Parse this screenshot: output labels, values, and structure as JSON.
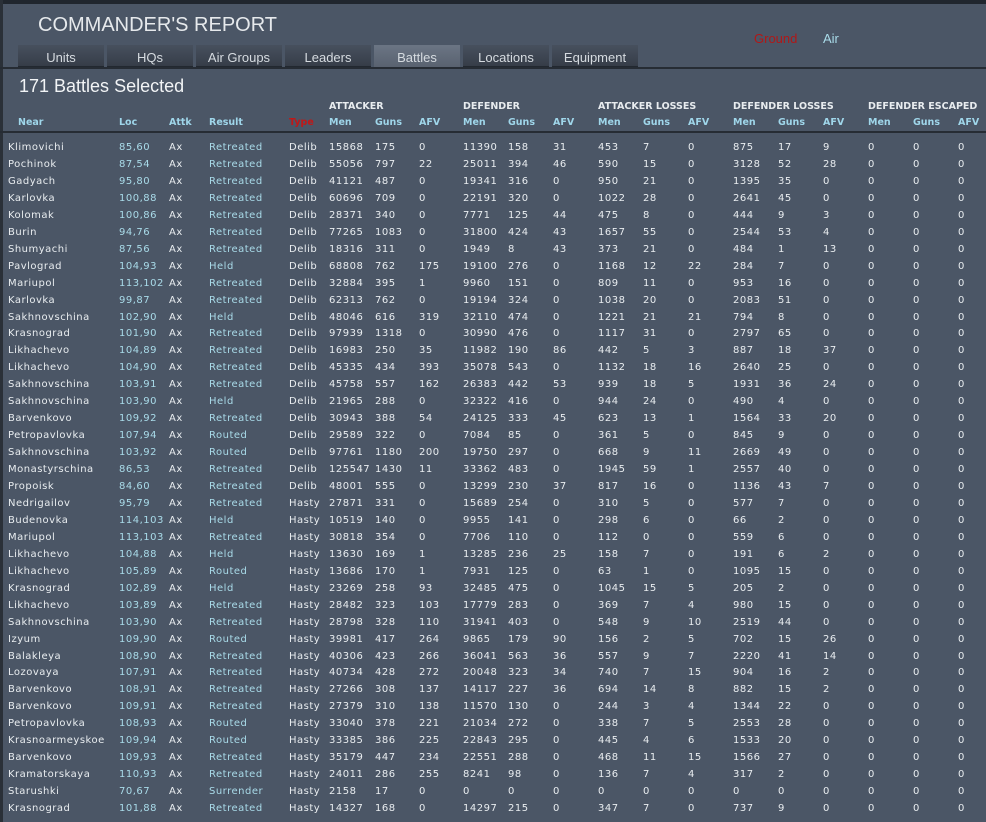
{
  "header": {
    "title": "COMMANDER'S REPORT",
    "mode_ground": "Ground",
    "mode_air": "Air",
    "ground_color": "#b01818",
    "air_color": "#a9dbe9"
  },
  "tabs": [
    {
      "label": "Units",
      "active": false
    },
    {
      "label": "HQs",
      "active": false
    },
    {
      "label": "Air Groups",
      "active": false
    },
    {
      "label": "Leaders",
      "active": false
    },
    {
      "label": "Battles",
      "active": true
    },
    {
      "label": "Locations",
      "active": false
    },
    {
      "label": "Equipment",
      "active": false
    }
  ],
  "summary": "171 Battles Selected",
  "groups": [
    "ATTACKER",
    "DEFENDER",
    "ATTACKER LOSSES",
    "DEFENDER LOSSES",
    "DEFENDER ESCAPED"
  ],
  "columns": [
    "Near",
    "Loc",
    "Attk",
    "Result",
    "Type",
    "Men",
    "Guns",
    "AFV",
    "Men",
    "Guns",
    "AFV",
    "Men",
    "Guns",
    "AFV",
    "Men",
    "Guns",
    "AFV",
    "Men",
    "Guns",
    "AFV"
  ],
  "sorted_column_color": "#c01818",
  "rows": [
    [
      "Klimovichi",
      "85,60",
      "Ax",
      "Retreated",
      "Delib",
      "15868",
      "175",
      "0",
      "11390",
      "158",
      "31",
      "453",
      "7",
      "0",
      "875",
      "17",
      "9",
      "0",
      "0",
      "0"
    ],
    [
      "Pochinok",
      "87,54",
      "Ax",
      "Retreated",
      "Delib",
      "55056",
      "797",
      "22",
      "25011",
      "394",
      "46",
      "590",
      "15",
      "0",
      "3128",
      "52",
      "28",
      "0",
      "0",
      "0"
    ],
    [
      "Gadyach",
      "95,80",
      "Ax",
      "Retreated",
      "Delib",
      "41121",
      "487",
      "0",
      "19341",
      "316",
      "0",
      "950",
      "21",
      "0",
      "1395",
      "35",
      "0",
      "0",
      "0",
      "0"
    ],
    [
      "Karlovka",
      "100,88",
      "Ax",
      "Retreated",
      "Delib",
      "60696",
      "709",
      "0",
      "22191",
      "320",
      "0",
      "1022",
      "28",
      "0",
      "2641",
      "45",
      "0",
      "0",
      "0",
      "0"
    ],
    [
      "Kolomak",
      "100,86",
      "Ax",
      "Retreated",
      "Delib",
      "28371",
      "340",
      "0",
      "7771",
      "125",
      "44",
      "475",
      "8",
      "0",
      "444",
      "9",
      "3",
      "0",
      "0",
      "0"
    ],
    [
      "Burin",
      "94,76",
      "Ax",
      "Retreated",
      "Delib",
      "77265",
      "1083",
      "0",
      "31800",
      "424",
      "43",
      "1657",
      "55",
      "0",
      "2544",
      "53",
      "4",
      "0",
      "0",
      "0"
    ],
    [
      "Shumyachi",
      "87,56",
      "Ax",
      "Retreated",
      "Delib",
      "18316",
      "311",
      "0",
      "1949",
      "8",
      "43",
      "373",
      "21",
      "0",
      "484",
      "1",
      "13",
      "0",
      "0",
      "0"
    ],
    [
      "Pavlograd",
      "104,93",
      "Ax",
      "Held",
      "Delib",
      "68808",
      "762",
      "175",
      "19100",
      "276",
      "0",
      "1168",
      "12",
      "22",
      "284",
      "7",
      "0",
      "0",
      "0",
      "0"
    ],
    [
      "Mariupol",
      "113,102",
      "Ax",
      "Retreated",
      "Delib",
      "32884",
      "395",
      "1",
      "9960",
      "151",
      "0",
      "809",
      "11",
      "0",
      "953",
      "16",
      "0",
      "0",
      "0",
      "0"
    ],
    [
      "Karlovka",
      "99,87",
      "Ax",
      "Retreated",
      "Delib",
      "62313",
      "762",
      "0",
      "19194",
      "324",
      "0",
      "1038",
      "20",
      "0",
      "2083",
      "51",
      "0",
      "0",
      "0",
      "0"
    ],
    [
      "Sakhnovschina",
      "102,90",
      "Ax",
      "Held",
      "Delib",
      "48046",
      "616",
      "319",
      "32110",
      "474",
      "0",
      "1221",
      "21",
      "21",
      "794",
      "8",
      "0",
      "0",
      "0",
      "0"
    ],
    [
      "Krasnograd",
      "101,90",
      "Ax",
      "Retreated",
      "Delib",
      "97939",
      "1318",
      "0",
      "30990",
      "476",
      "0",
      "1117",
      "31",
      "0",
      "2797",
      "65",
      "0",
      "0",
      "0",
      "0"
    ],
    [
      "Likhachevo",
      "104,89",
      "Ax",
      "Retreated",
      "Delib",
      "16983",
      "250",
      "35",
      "11982",
      "190",
      "86",
      "442",
      "5",
      "3",
      "887",
      "18",
      "37",
      "0",
      "0",
      "0"
    ],
    [
      "Likhachevo",
      "104,90",
      "Ax",
      "Retreated",
      "Delib",
      "45335",
      "434",
      "393",
      "35078",
      "543",
      "0",
      "1132",
      "18",
      "16",
      "2640",
      "25",
      "0",
      "0",
      "0",
      "0"
    ],
    [
      "Sakhnovschina",
      "103,91",
      "Ax",
      "Retreated",
      "Delib",
      "45758",
      "557",
      "162",
      "26383",
      "442",
      "53",
      "939",
      "18",
      "5",
      "1931",
      "36",
      "24",
      "0",
      "0",
      "0"
    ],
    [
      "Sakhnovschina",
      "103,90",
      "Ax",
      "Held",
      "Delib",
      "21965",
      "288",
      "0",
      "32322",
      "416",
      "0",
      "944",
      "24",
      "0",
      "490",
      "4",
      "0",
      "0",
      "0",
      "0"
    ],
    [
      "Barvenkovo",
      "109,92",
      "Ax",
      "Retreated",
      "Delib",
      "30943",
      "388",
      "54",
      "24125",
      "333",
      "45",
      "623",
      "13",
      "1",
      "1564",
      "33",
      "20",
      "0",
      "0",
      "0"
    ],
    [
      "Petropavlovka",
      "107,94",
      "Ax",
      "Routed",
      "Delib",
      "29589",
      "322",
      "0",
      "7084",
      "85",
      "0",
      "361",
      "5",
      "0",
      "845",
      "9",
      "0",
      "0",
      "0",
      "0"
    ],
    [
      "Sakhnovschina",
      "103,92",
      "Ax",
      "Routed",
      "Delib",
      "97761",
      "1180",
      "200",
      "19750",
      "297",
      "0",
      "668",
      "9",
      "11",
      "2669",
      "49",
      "0",
      "0",
      "0",
      "0"
    ],
    [
      "Monastyrschina",
      "86,53",
      "Ax",
      "Retreated",
      "Delib",
      "125547",
      "1430",
      "11",
      "33362",
      "483",
      "0",
      "1945",
      "59",
      "1",
      "2557",
      "40",
      "0",
      "0",
      "0",
      "0"
    ],
    [
      "Propoisk",
      "84,60",
      "Ax",
      "Retreated",
      "Delib",
      "48001",
      "555",
      "0",
      "13299",
      "230",
      "37",
      "817",
      "16",
      "0",
      "1136",
      "43",
      "7",
      "0",
      "0",
      "0"
    ],
    [
      "Nedrigailov",
      "95,79",
      "Ax",
      "Retreated",
      "Hasty",
      "27871",
      "331",
      "0",
      "15689",
      "254",
      "0",
      "310",
      "5",
      "0",
      "577",
      "7",
      "0",
      "0",
      "0",
      "0"
    ],
    [
      "Budenovka",
      "114,103",
      "Ax",
      "Held",
      "Hasty",
      "10519",
      "140",
      "0",
      "9955",
      "141",
      "0",
      "298",
      "6",
      "0",
      "66",
      "2",
      "0",
      "0",
      "0",
      "0"
    ],
    [
      "Mariupol",
      "113,103",
      "Ax",
      "Retreated",
      "Hasty",
      "30818",
      "354",
      "0",
      "7706",
      "110",
      "0",
      "112",
      "0",
      "0",
      "559",
      "6",
      "0",
      "0",
      "0",
      "0"
    ],
    [
      "Likhachevo",
      "104,88",
      "Ax",
      "Held",
      "Hasty",
      "13630",
      "169",
      "1",
      "13285",
      "236",
      "25",
      "158",
      "7",
      "0",
      "191",
      "6",
      "2",
      "0",
      "0",
      "0"
    ],
    [
      "Likhachevo",
      "105,89",
      "Ax",
      "Routed",
      "Hasty",
      "13686",
      "170",
      "1",
      "7931",
      "125",
      "0",
      "63",
      "1",
      "0",
      "1095",
      "15",
      "0",
      "0",
      "0",
      "0"
    ],
    [
      "Krasnograd",
      "102,89",
      "Ax",
      "Held",
      "Hasty",
      "23269",
      "258",
      "93",
      "32485",
      "475",
      "0",
      "1045",
      "15",
      "5",
      "205",
      "2",
      "0",
      "0",
      "0",
      "0"
    ],
    [
      "Likhachevo",
      "103,89",
      "Ax",
      "Retreated",
      "Hasty",
      "28482",
      "323",
      "103",
      "17779",
      "283",
      "0",
      "369",
      "7",
      "4",
      "980",
      "15",
      "0",
      "0",
      "0",
      "0"
    ],
    [
      "Sakhnovschina",
      "103,90",
      "Ax",
      "Retreated",
      "Hasty",
      "28798",
      "328",
      "110",
      "31941",
      "403",
      "0",
      "548",
      "9",
      "10",
      "2519",
      "44",
      "0",
      "0",
      "0",
      "0"
    ],
    [
      "Izyum",
      "109,90",
      "Ax",
      "Routed",
      "Hasty",
      "39981",
      "417",
      "264",
      "9865",
      "179",
      "90",
      "156",
      "2",
      "5",
      "702",
      "15",
      "26",
      "0",
      "0",
      "0"
    ],
    [
      "Balakleya",
      "108,90",
      "Ax",
      "Retreated",
      "Hasty",
      "40306",
      "423",
      "266",
      "36041",
      "563",
      "36",
      "557",
      "9",
      "7",
      "2220",
      "41",
      "14",
      "0",
      "0",
      "0"
    ],
    [
      "Lozovaya",
      "107,91",
      "Ax",
      "Retreated",
      "Hasty",
      "40734",
      "428",
      "272",
      "20048",
      "323",
      "34",
      "740",
      "7",
      "15",
      "904",
      "16",
      "2",
      "0",
      "0",
      "0"
    ],
    [
      "Barvenkovo",
      "108,91",
      "Ax",
      "Retreated",
      "Hasty",
      "27266",
      "308",
      "137",
      "14117",
      "227",
      "36",
      "694",
      "14",
      "8",
      "882",
      "15",
      "2",
      "0",
      "0",
      "0"
    ],
    [
      "Barvenkovo",
      "109,91",
      "Ax",
      "Retreated",
      "Hasty",
      "27379",
      "310",
      "138",
      "11570",
      "130",
      "0",
      "244",
      "3",
      "4",
      "1344",
      "22",
      "0",
      "0",
      "0",
      "0"
    ],
    [
      "Petropavlovka",
      "108,93",
      "Ax",
      "Routed",
      "Hasty",
      "33040",
      "378",
      "221",
      "21034",
      "272",
      "0",
      "338",
      "7",
      "5",
      "2553",
      "28",
      "0",
      "0",
      "0",
      "0"
    ],
    [
      "Krasnoarmeyskoe",
      "109,94",
      "Ax",
      "Routed",
      "Hasty",
      "33385",
      "386",
      "225",
      "22843",
      "295",
      "0",
      "445",
      "4",
      "6",
      "1533",
      "20",
      "0",
      "0",
      "0",
      "0"
    ],
    [
      "Barvenkovo",
      "109,93",
      "Ax",
      "Retreated",
      "Hasty",
      "35179",
      "447",
      "234",
      "22551",
      "288",
      "0",
      "468",
      "11",
      "15",
      "1566",
      "27",
      "0",
      "0",
      "0",
      "0"
    ],
    [
      "Kramatorskaya",
      "110,93",
      "Ax",
      "Retreated",
      "Hasty",
      "24011",
      "286",
      "255",
      "8241",
      "98",
      "0",
      "136",
      "7",
      "4",
      "317",
      "2",
      "0",
      "0",
      "0",
      "0"
    ],
    [
      "Starushki",
      "70,67",
      "Ax",
      "Surrender",
      "Hasty",
      "2158",
      "17",
      "0",
      "0",
      "0",
      "0",
      "0",
      "0",
      "0",
      "0",
      "0",
      "0",
      "0",
      "0",
      "0"
    ],
    [
      "Krasnograd",
      "101,88",
      "Ax",
      "Retreated",
      "Hasty",
      "14327",
      "168",
      "0",
      "14297",
      "215",
      "0",
      "347",
      "7",
      "0",
      "737",
      "9",
      "0",
      "0",
      "0",
      "0"
    ]
  ]
}
